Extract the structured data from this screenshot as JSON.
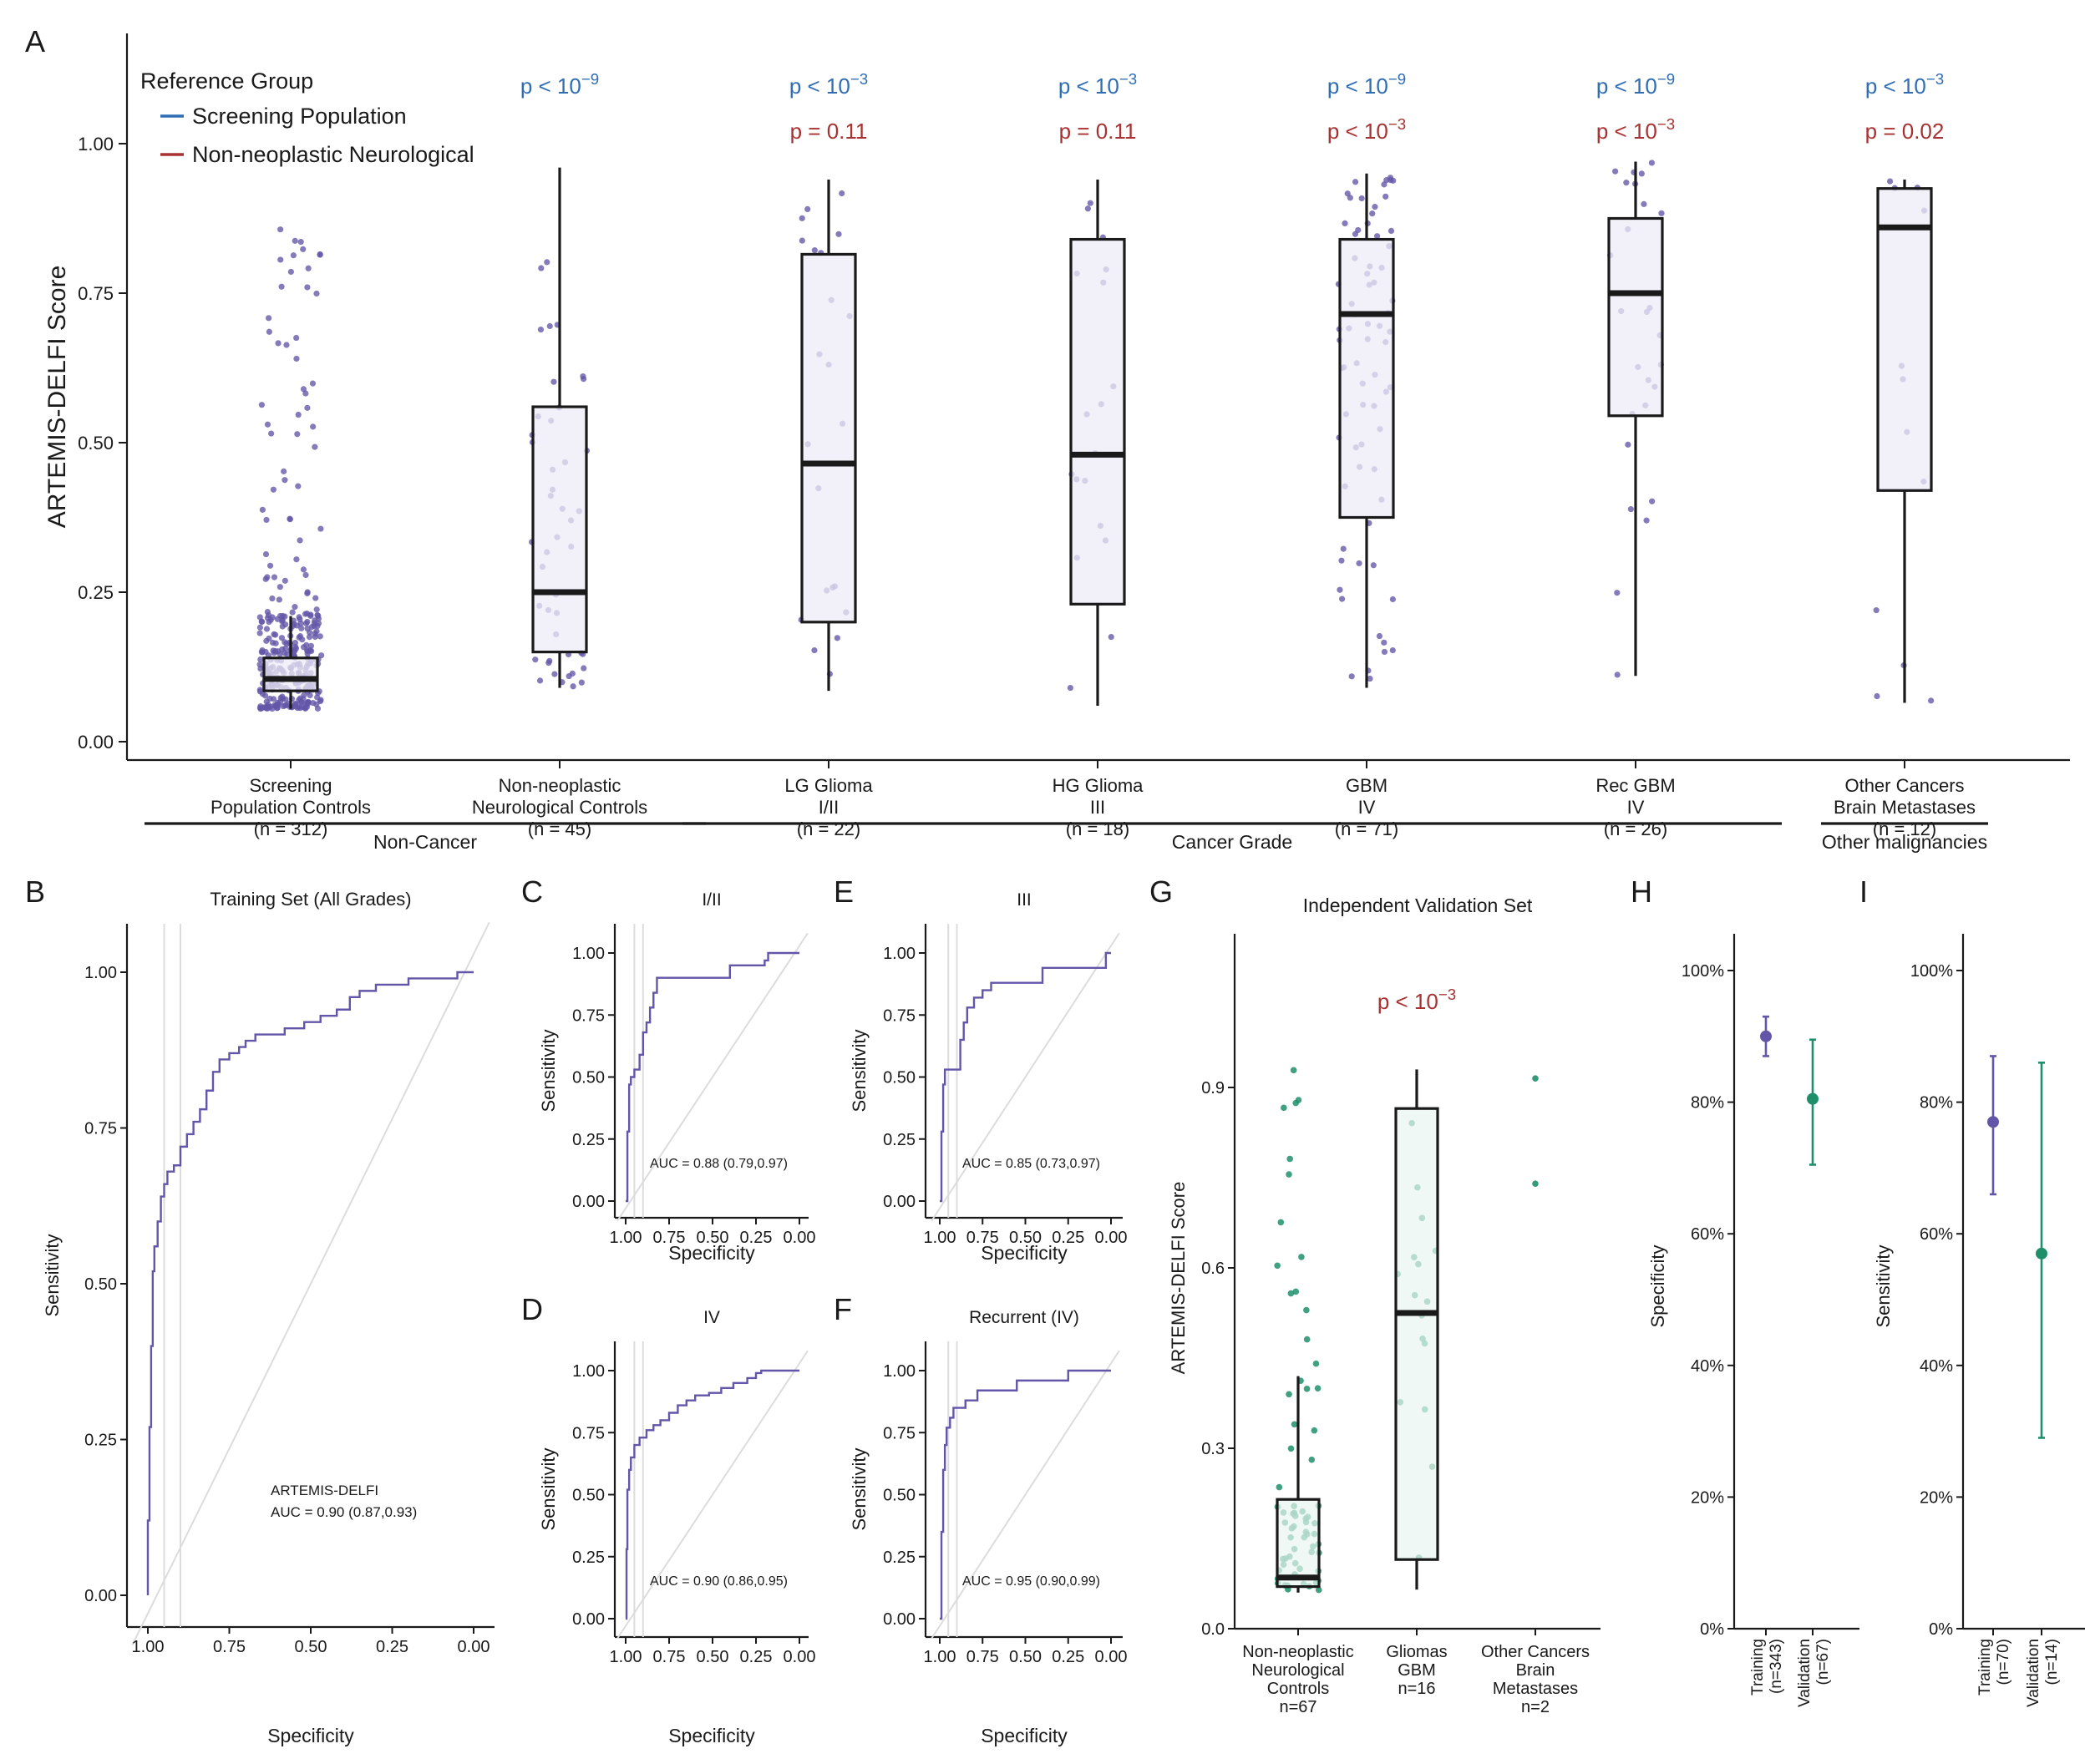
{
  "panels": {
    "A": "A",
    "B": "B",
    "C": "C",
    "D": "D",
    "E": "E",
    "F": "F",
    "G": "G",
    "H": "H",
    "I": "I"
  },
  "colors": {
    "purple": "#6356a8",
    "purple_fill": "#eeecf7",
    "green": "#1f8f6a",
    "green_fill": "#e8f5ef",
    "blue": "#2f6db5",
    "red": "#a83232",
    "diag": "#dcdcdc"
  },
  "chart_data": [
    {
      "id": "A",
      "type": "box",
      "ylabel": "ARTEMIS-DELFI Score",
      "ylim": [
        0,
        1.1
      ],
      "yticks": [
        "0.00",
        "0.25",
        "0.50",
        "0.75",
        "1.00"
      ],
      "legend": {
        "title": "Reference Group",
        "entries": [
          {
            "name": "Screening Population",
            "color": "#2f6db5"
          },
          {
            "name": "Non-neoplastic Neurological",
            "color": "#a83232"
          }
        ],
        "placement": "top-left"
      },
      "groups": [
        {
          "label": [
            "Screening",
            "Population Controls",
            "(n = 312)"
          ],
          "n": 312,
          "box": {
            "q1": 0.085,
            "median": 0.105,
            "q3": 0.14,
            "lo": 0.055,
            "hi": 0.21
          },
          "p_screen": "",
          "p_neuro": ""
        },
        {
          "label": [
            "Non-neoplastic",
            "Neurological Controls",
            "(n = 45)"
          ],
          "n": 45,
          "box": {
            "q1": 0.15,
            "median": 0.25,
            "q3": 0.56,
            "lo": 0.09,
            "hi": 0.96
          },
          "p_screen": "p < 10",
          "p_screen_exp": "−9",
          "p_neuro": ""
        },
        {
          "label": [
            "LG Glioma",
            "I/II",
            "(n = 22)"
          ],
          "n": 22,
          "box": {
            "q1": 0.2,
            "median": 0.465,
            "q3": 0.815,
            "lo": 0.085,
            "hi": 0.94
          },
          "p_screen": "p < 10",
          "p_screen_exp": "−3",
          "p_neuro": "p = 0.11"
        },
        {
          "label": [
            "HG Glioma",
            "III",
            "(n = 18)"
          ],
          "n": 18,
          "box": {
            "q1": 0.23,
            "median": 0.48,
            "q3": 0.84,
            "lo": 0.06,
            "hi": 0.94
          },
          "p_screen": "p < 10",
          "p_screen_exp": "−3",
          "p_neuro": "p = 0.11"
        },
        {
          "label": [
            "GBM",
            "IV",
            "(n = 71)"
          ],
          "n": 71,
          "box": {
            "q1": 0.375,
            "median": 0.715,
            "q3": 0.84,
            "lo": 0.09,
            "hi": 0.95
          },
          "p_screen": "p < 10",
          "p_screen_exp": "−9",
          "p_neuro": "p < 10",
          "p_neuro_exp": "−3"
        },
        {
          "label": [
            "Rec GBM",
            "IV",
            "(n = 26)"
          ],
          "n": 26,
          "box": {
            "q1": 0.545,
            "median": 0.75,
            "q3": 0.875,
            "lo": 0.11,
            "hi": 0.97
          },
          "p_screen": "p < 10",
          "p_screen_exp": "−9",
          "p_neuro": "p < 10",
          "p_neuro_exp": "−3"
        },
        {
          "label": [
            "Other Cancers",
            "Brain Metastases",
            "(n = 12)"
          ],
          "n": 12,
          "box": {
            "q1": 0.42,
            "median": 0.86,
            "q3": 0.925,
            "lo": 0.065,
            "hi": 0.94
          },
          "p_screen": "p < 10",
          "p_screen_exp": "−3",
          "p_neuro": "p = 0.02"
        }
      ],
      "brackets": [
        {
          "label": "Non-Cancer",
          "from": 0,
          "to": 1
        },
        {
          "label": "Cancer Grade",
          "from": 2,
          "to": 5
        },
        {
          "label": "Other malignancies",
          "from": 6,
          "to": 6
        }
      ]
    },
    {
      "id": "B",
      "type": "line",
      "title": "Training Set (All Grades)",
      "xlabel": "Specificity",
      "ylabel": "Sensitivity",
      "xticks": [
        "1.00",
        "0.75",
        "0.50",
        "0.25",
        "0.00"
      ],
      "yticks": [
        "0.00",
        "0.25",
        "0.50",
        "0.75",
        "1.00"
      ],
      "annotation": [
        "ARTEMIS-DELFI",
        "AUC =  0.90 (0.87,0.93)"
      ],
      "guides_spec": [
        0.95,
        0.9
      ],
      "roc": [
        [
          1,
          0
        ],
        [
          1,
          0.12
        ],
        [
          0.995,
          0.27
        ],
        [
          0.99,
          0.4
        ],
        [
          0.985,
          0.52
        ],
        [
          0.98,
          0.56
        ],
        [
          0.97,
          0.6
        ],
        [
          0.96,
          0.64
        ],
        [
          0.95,
          0.66
        ],
        [
          0.94,
          0.68
        ],
        [
          0.92,
          0.69
        ],
        [
          0.9,
          0.72
        ],
        [
          0.88,
          0.74
        ],
        [
          0.86,
          0.76
        ],
        [
          0.84,
          0.78
        ],
        [
          0.82,
          0.81
        ],
        [
          0.8,
          0.84
        ],
        [
          0.78,
          0.86
        ],
        [
          0.75,
          0.87
        ],
        [
          0.72,
          0.88
        ],
        [
          0.7,
          0.89
        ],
        [
          0.67,
          0.9
        ],
        [
          0.63,
          0.9
        ],
        [
          0.58,
          0.91
        ],
        [
          0.52,
          0.92
        ],
        [
          0.47,
          0.93
        ],
        [
          0.42,
          0.94
        ],
        [
          0.38,
          0.96
        ],
        [
          0.35,
          0.97
        ],
        [
          0.3,
          0.98
        ],
        [
          0.25,
          0.98
        ],
        [
          0.2,
          0.99
        ],
        [
          0.1,
          0.99
        ],
        [
          0.05,
          1
        ],
        [
          0,
          1
        ]
      ]
    },
    {
      "id": "C",
      "type": "line",
      "title": "I/II",
      "xlabel": "Specificity",
      "ylabel": "Sensitivity",
      "xticks": [
        "1.00",
        "0.75",
        "0.50",
        "0.25",
        "0.00"
      ],
      "yticks": [
        "0.00",
        "0.25",
        "0.50",
        "0.75",
        "1.00"
      ],
      "annotation": [
        "AUC =  0.88 (0.79,0.97)"
      ],
      "guides_spec": [
        0.95,
        0.9
      ],
      "roc": [
        [
          1,
          0
        ],
        [
          0.99,
          0.28
        ],
        [
          0.98,
          0.47
        ],
        [
          0.97,
          0.5
        ],
        [
          0.95,
          0.53
        ],
        [
          0.92,
          0.59
        ],
        [
          0.9,
          0.68
        ],
        [
          0.88,
          0.72
        ],
        [
          0.86,
          0.78
        ],
        [
          0.84,
          0.84
        ],
        [
          0.82,
          0.9
        ],
        [
          0.6,
          0.9
        ],
        [
          0.4,
          0.95
        ],
        [
          0.2,
          0.97
        ],
        [
          0.18,
          1
        ],
        [
          0,
          1
        ]
      ]
    },
    {
      "id": "D",
      "type": "line",
      "title": "IV",
      "xlabel": "Specificity",
      "ylabel": "Sensitivity",
      "xticks": [
        "1.00",
        "0.75",
        "0.50",
        "0.25",
        "0.00"
      ],
      "yticks": [
        "0.00",
        "0.25",
        "0.50",
        "0.75",
        "1.00"
      ],
      "annotation": [
        "AUC =  0.90 (0.86,0.95)"
      ],
      "guides_spec": [
        0.95,
        0.9
      ],
      "roc": [
        [
          1,
          0
        ],
        [
          0.995,
          0.28
        ],
        [
          0.99,
          0.52
        ],
        [
          0.98,
          0.6
        ],
        [
          0.97,
          0.65
        ],
        [
          0.95,
          0.7
        ],
        [
          0.92,
          0.73
        ],
        [
          0.88,
          0.76
        ],
        [
          0.84,
          0.78
        ],
        [
          0.8,
          0.8
        ],
        [
          0.75,
          0.83
        ],
        [
          0.7,
          0.86
        ],
        [
          0.65,
          0.88
        ],
        [
          0.6,
          0.9
        ],
        [
          0.52,
          0.91
        ],
        [
          0.45,
          0.93
        ],
        [
          0.38,
          0.95
        ],
        [
          0.3,
          0.97
        ],
        [
          0.25,
          0.99
        ],
        [
          0.22,
          1
        ],
        [
          0,
          1
        ]
      ]
    },
    {
      "id": "E",
      "type": "line",
      "title": "III",
      "xlabel": "Specificity",
      "ylabel": "Sensitivity",
      "xticks": [
        "1.00",
        "0.75",
        "0.50",
        "0.25",
        "0.00"
      ],
      "yticks": [
        "0.00",
        "0.25",
        "0.50",
        "0.75",
        "1.00"
      ],
      "annotation": [
        "AUC =  0.85 (0.73,0.97)"
      ],
      "guides_spec": [
        0.95,
        0.9
      ],
      "roc": [
        [
          1,
          0
        ],
        [
          0.99,
          0.28
        ],
        [
          0.98,
          0.47
        ],
        [
          0.97,
          0.53
        ],
        [
          0.9,
          0.53
        ],
        [
          0.88,
          0.65
        ],
        [
          0.86,
          0.72
        ],
        [
          0.84,
          0.78
        ],
        [
          0.8,
          0.82
        ],
        [
          0.75,
          0.85
        ],
        [
          0.7,
          0.88
        ],
        [
          0.45,
          0.88
        ],
        [
          0.4,
          0.94
        ],
        [
          0.05,
          0.94
        ],
        [
          0.03,
          1
        ],
        [
          0,
          1
        ]
      ]
    },
    {
      "id": "F",
      "type": "line",
      "title": "Recurrent (IV)",
      "xlabel": "Specificity",
      "ylabel": "Sensitivity",
      "xticks": [
        "1.00",
        "0.75",
        "0.50",
        "0.25",
        "0.00"
      ],
      "yticks": [
        "0.00",
        "0.25",
        "0.50",
        "0.75",
        "1.00"
      ],
      "annotation": [
        "AUC =  0.95 (0.90,0.99)"
      ],
      "guides_spec": [
        0.95,
        0.9
      ],
      "roc": [
        [
          1,
          0
        ],
        [
          0.99,
          0.35
        ],
        [
          0.98,
          0.6
        ],
        [
          0.97,
          0.7
        ],
        [
          0.96,
          0.77
        ],
        [
          0.94,
          0.81
        ],
        [
          0.92,
          0.85
        ],
        [
          0.85,
          0.88
        ],
        [
          0.8,
          0.88
        ],
        [
          0.78,
          0.92
        ],
        [
          0.6,
          0.92
        ],
        [
          0.55,
          0.96
        ],
        [
          0.3,
          0.96
        ],
        [
          0.25,
          1
        ],
        [
          0,
          1
        ]
      ]
    },
    {
      "id": "G",
      "type": "box",
      "title": "Independent Validation Set",
      "ylabel": "ARTEMIS-DELFI Score",
      "ylim": [
        0,
        1
      ],
      "yticks": [
        "0.0",
        "0.3",
        "0.6",
        "0.9"
      ],
      "p_value": "p < 10",
      "p_value_exp": "−3",
      "groups": [
        {
          "label": [
            "Non-neoplastic",
            "Neurological",
            "Controls",
            "n=67"
          ],
          "n": 67,
          "box": {
            "q1": 0.07,
            "median": 0.085,
            "q3": 0.215,
            "lo": 0.06,
            "hi": 0.42
          }
        },
        {
          "label": [
            "Gliomas",
            "GBM",
            "n=16"
          ],
          "n": 16,
          "box": {
            "q1": 0.115,
            "median": 0.525,
            "q3": 0.865,
            "lo": 0.065,
            "hi": 0.93
          }
        },
        {
          "label": [
            "Other Cancers",
            "Brain",
            "Metastases",
            "n=2"
          ],
          "n": 2,
          "points": [
            0.915,
            0.74
          ]
        }
      ]
    },
    {
      "id": "H",
      "type": "scatter",
      "ylabel": "Specificity",
      "yticks": [
        "0%",
        "20%",
        "40%",
        "60%",
        "80%",
        "100%"
      ],
      "categories": [
        [
          "Training",
          "(n=343)"
        ],
        [
          "Validation",
          "(n=67)"
        ]
      ],
      "values": [
        0.9,
        0.805
      ],
      "ci": [
        [
          0.87,
          0.93
        ],
        [
          0.705,
          0.895
        ]
      ]
    },
    {
      "id": "I",
      "type": "scatter",
      "ylabel": "Sensitivity",
      "yticks": [
        "0%",
        "20%",
        "40%",
        "60%",
        "80%",
        "100%"
      ],
      "categories": [
        [
          "Training",
          "(n=70)"
        ],
        [
          "Validation",
          "(n=14)"
        ]
      ],
      "values": [
        0.77,
        0.57
      ],
      "ci": [
        [
          0.66,
          0.87
        ],
        [
          0.29,
          0.86
        ]
      ]
    }
  ]
}
